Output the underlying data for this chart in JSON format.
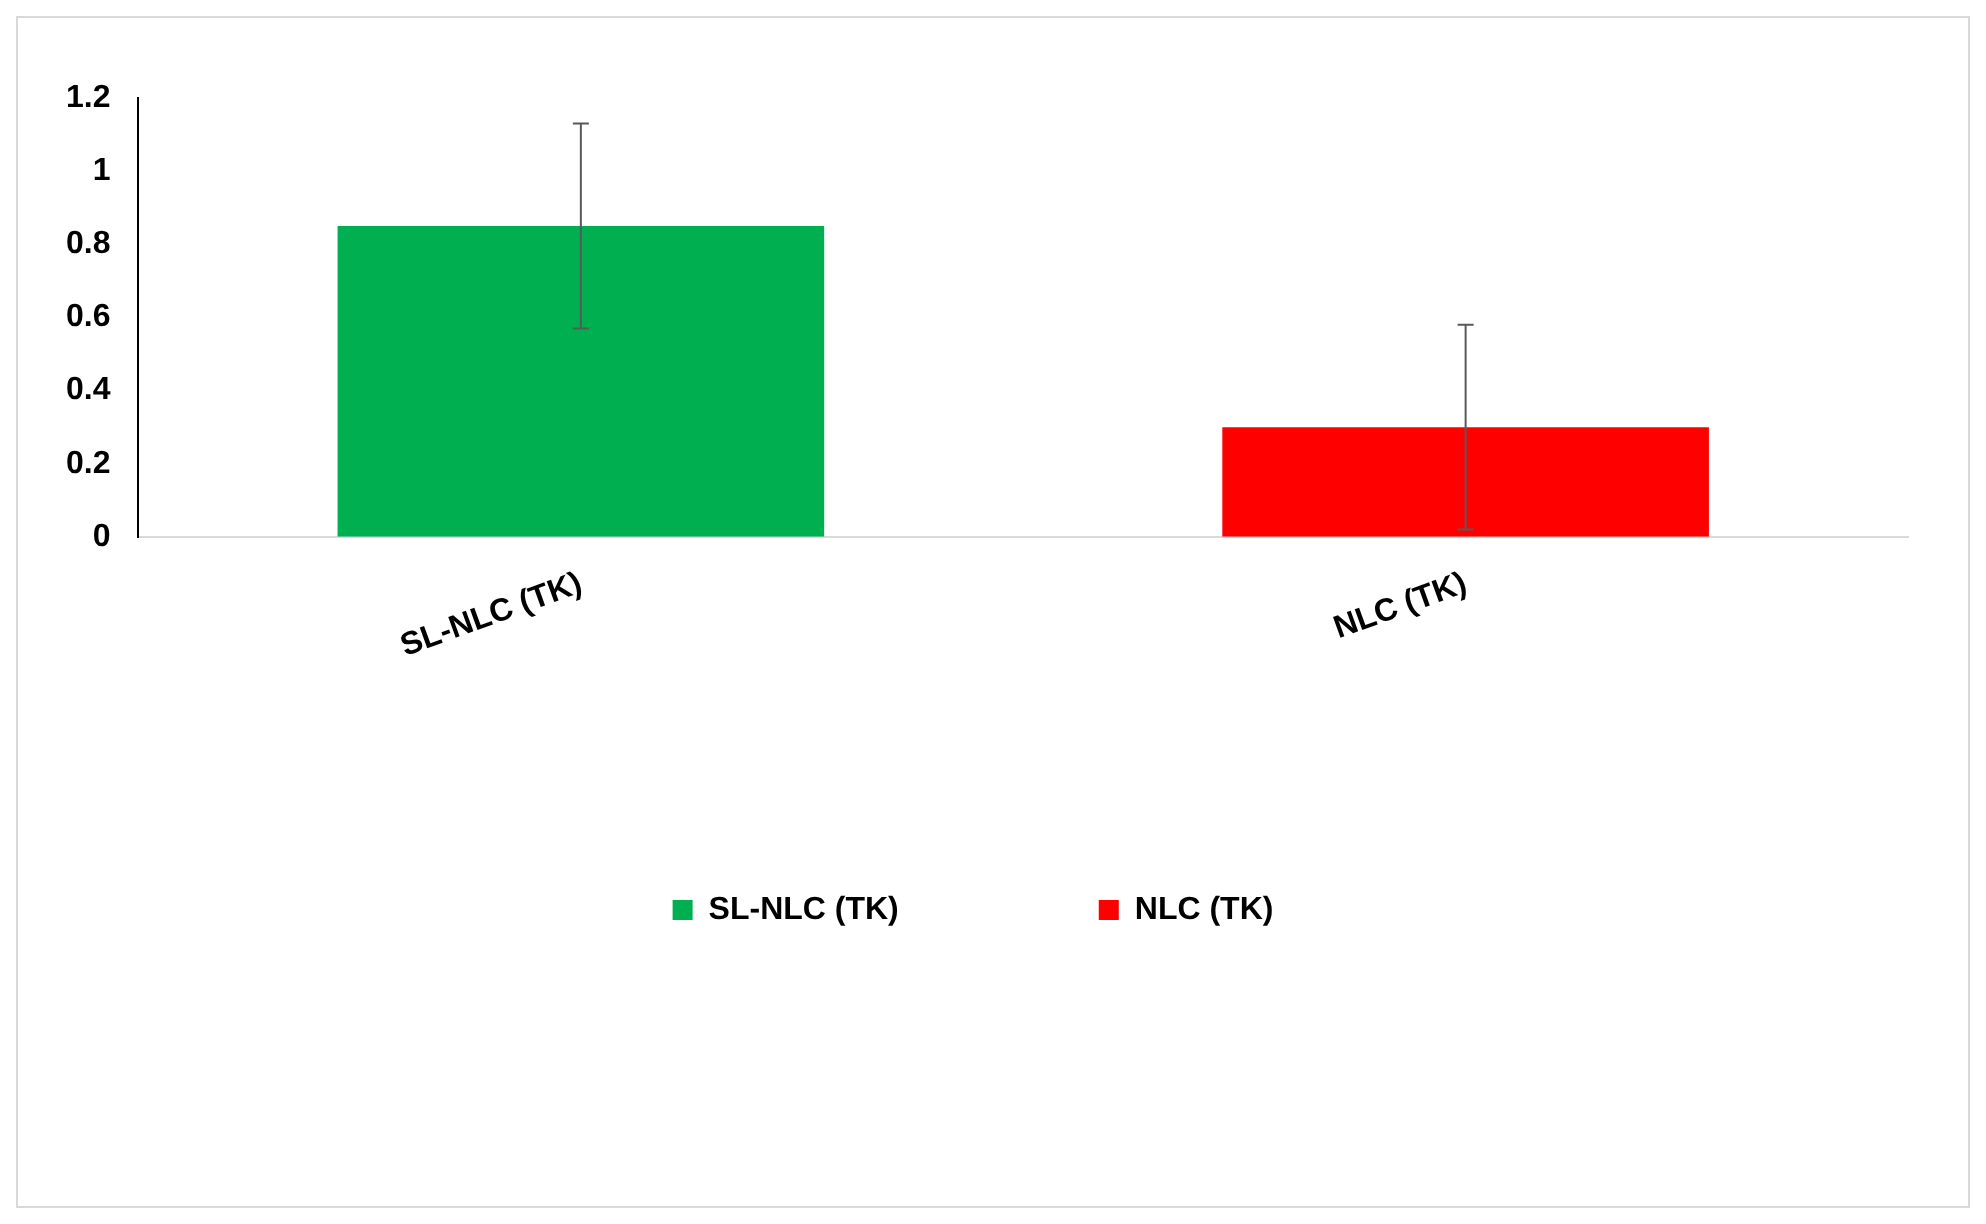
{
  "chart_data": {
    "type": "bar",
    "categories": [
      "SL-NLC (TK)",
      "NLC (TK)"
    ],
    "series": [
      {
        "name": "SL-NLC (TK)",
        "color": "#00b050",
        "values": [
          0.85,
          null
        ],
        "errors": [
          0.28,
          null
        ]
      },
      {
        "name": "NLC (TK)",
        "color": "#ff0000",
        "values": [
          null,
          0.3
        ],
        "errors": [
          null,
          0.28
        ]
      }
    ],
    "ylim": [
      0,
      1.2
    ],
    "yticks": [
      0,
      0.2,
      0.4,
      0.6,
      0.8,
      1,
      1.2
    ],
    "grid": false,
    "legend": "bottom"
  }
}
